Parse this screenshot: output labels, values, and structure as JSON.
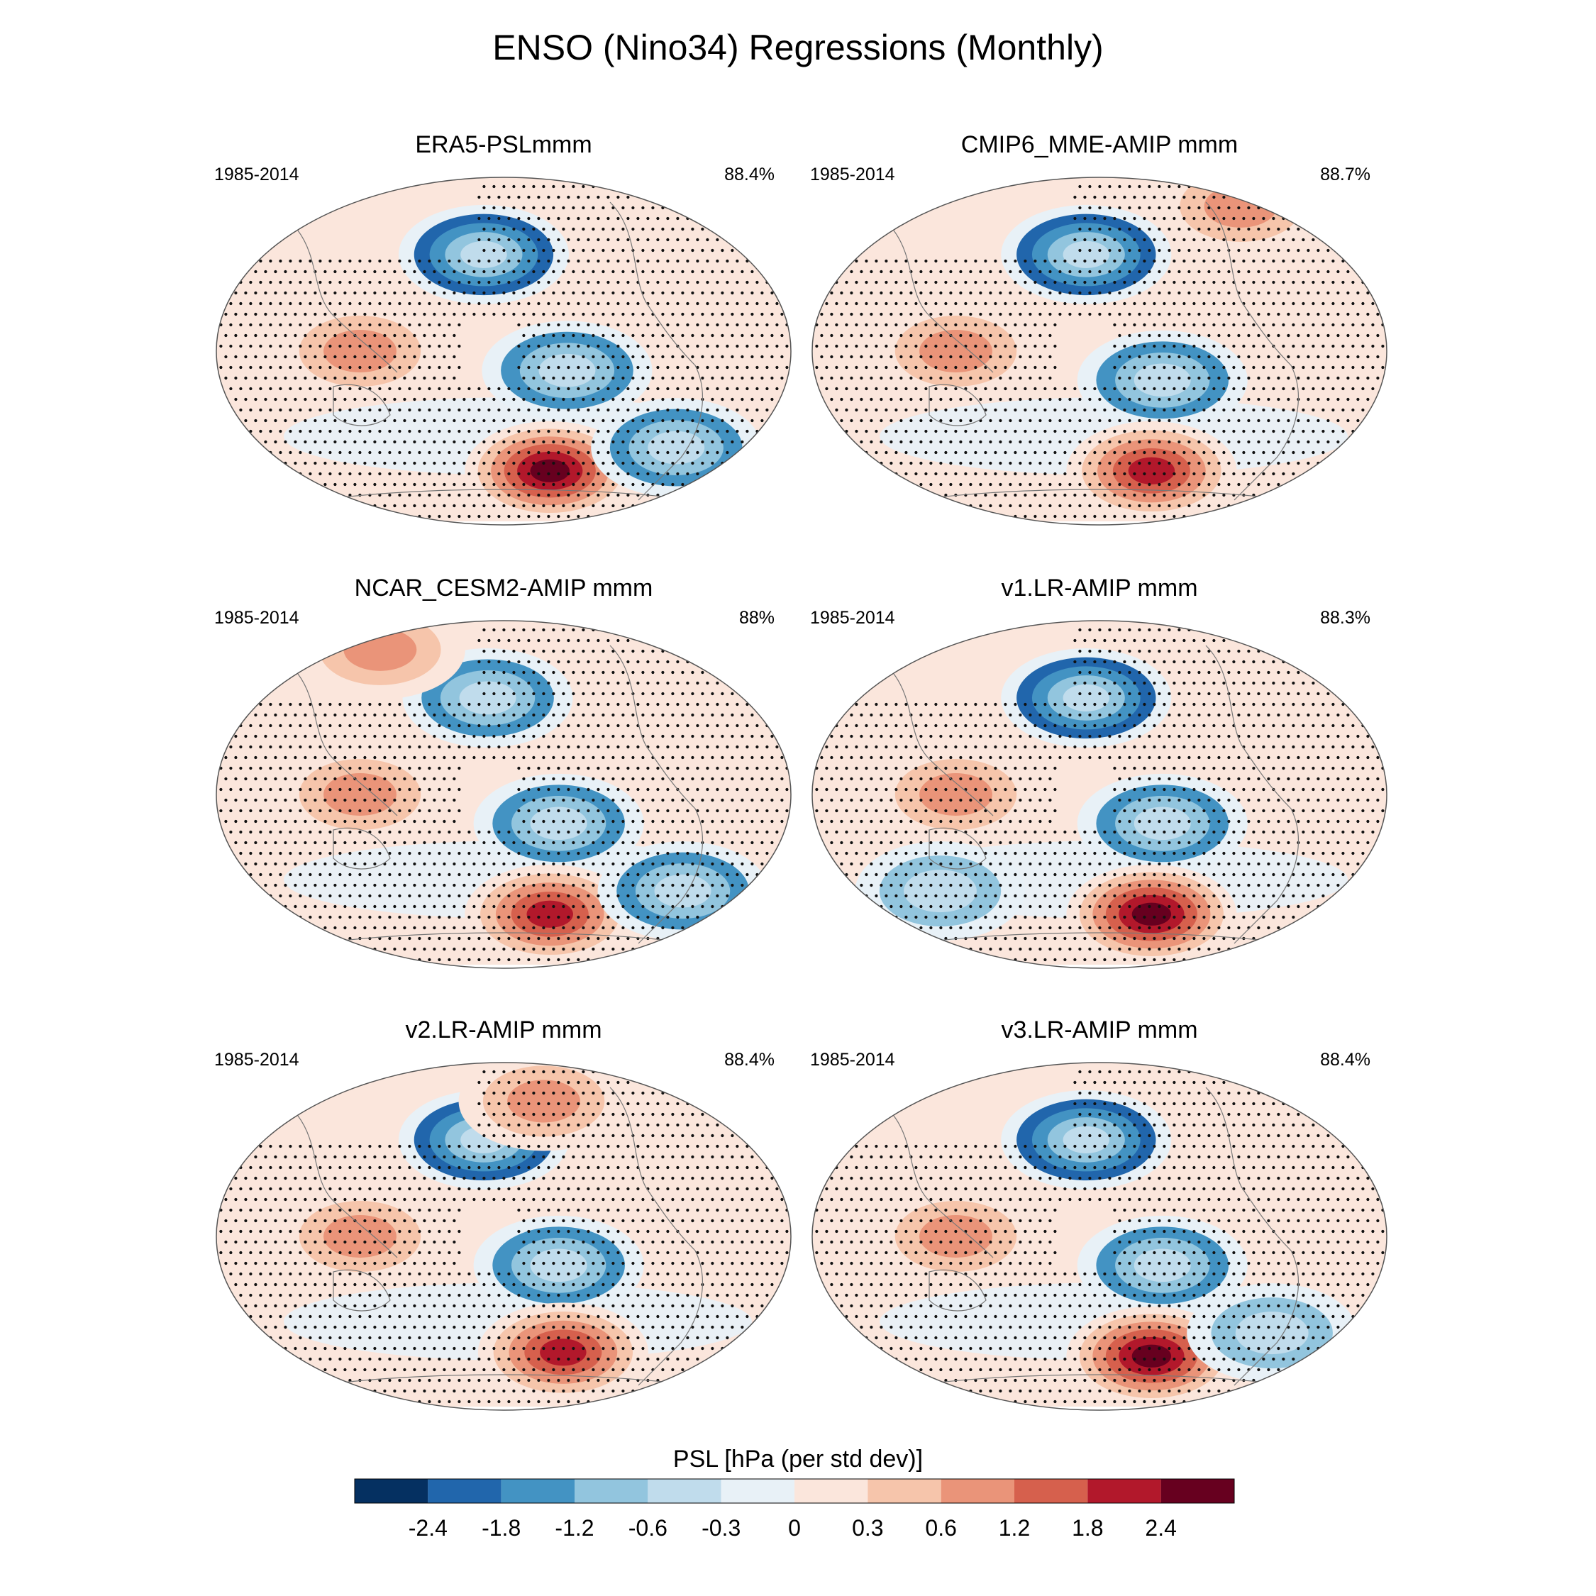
{
  "title": "ENSO (Nino34) Regressions (Monthly)",
  "chart_data": {
    "type": "heatmap",
    "description_variable": "PSL",
    "projection": "robinson",
    "panels": [
      {
        "title": "ERA5-PSLmmm",
        "period": "1985-2014",
        "pattern_correlation": "88.4%",
        "features": [
          {
            "name": "Aleutian low",
            "lon": -175,
            "lat": 50,
            "value": -1.8
          },
          {
            "name": "Maritime Continent high",
            "lon": 110,
            "lat": 0,
            "value": 1.0
          },
          {
            "name": "Tropical East Pacific low",
            "lon": -120,
            "lat": -10,
            "value": -1.2
          },
          {
            "name": "Amundsen Sea high",
            "lon": -120,
            "lat": -62,
            "value": 2.6
          },
          {
            "name": "South Atlantic low",
            "lon": -30,
            "lat": -50,
            "value": -1.2
          }
        ]
      },
      {
        "title": "CMIP6_MME-AMIP  mmm",
        "period": "1985-2014",
        "pattern_correlation": "88.7%",
        "features": [
          {
            "name": "Aleutian low",
            "lon": -170,
            "lat": 50,
            "value": -2.0
          },
          {
            "name": "Maritime Continent high",
            "lon": 110,
            "lat": 0,
            "value": 1.0
          },
          {
            "name": "Tropical East Pacific low",
            "lon": -120,
            "lat": -15,
            "value": -1.2
          },
          {
            "name": "Amundsen Sea high",
            "lon": -115,
            "lat": -62,
            "value": 1.8
          },
          {
            "name": "Arctic high",
            "lon": 0,
            "lat": 75,
            "value": 0.8
          }
        ]
      },
      {
        "title": "NCAR_CESM2-AMIP  mmm",
        "period": "1985-2014",
        "pattern_correlation": "88%",
        "features": [
          {
            "name": "Aleutian low",
            "lon": -172,
            "lat": 50,
            "value": -1.6
          },
          {
            "name": "Maritime Continent high",
            "lon": 110,
            "lat": 0,
            "value": 1.0
          },
          {
            "name": "Tropical East Pacific low",
            "lon": -125,
            "lat": -15,
            "value": -1.2
          },
          {
            "name": "Amundsen Sea high",
            "lon": -120,
            "lat": -62,
            "value": 2.0
          },
          {
            "name": "South Atlantic low",
            "lon": -25,
            "lat": -50,
            "value": -1.2
          },
          {
            "name": "Arctic high",
            "lon": 60,
            "lat": 75,
            "value": 0.8
          }
        ]
      },
      {
        "title": "v1.LR-AMIP  mmm",
        "period": "1985-2014",
        "pattern_correlation": "88.3%",
        "features": [
          {
            "name": "Aleutian low",
            "lon": -170,
            "lat": 50,
            "value": -1.8
          },
          {
            "name": "Maritime Continent high",
            "lon": 110,
            "lat": 0,
            "value": 0.8
          },
          {
            "name": "Tropical East Pacific low",
            "lon": -120,
            "lat": -15,
            "value": -1.2
          },
          {
            "name": "Amundsen Sea high",
            "lon": -115,
            "lat": -62,
            "value": 2.4
          },
          {
            "name": "South Indian Ocean low",
            "lon": 80,
            "lat": -50,
            "value": -0.6
          }
        ]
      },
      {
        "title": "v2.LR-AMIP  mmm",
        "period": "1985-2014",
        "pattern_correlation": "88.4%",
        "features": [
          {
            "name": "Aleutian low",
            "lon": -175,
            "lat": 50,
            "value": -1.8
          },
          {
            "name": "Maritime Continent high",
            "lon": 110,
            "lat": 0,
            "value": 0.8
          },
          {
            "name": "Tropical East Pacific low",
            "lon": -125,
            "lat": -15,
            "value": -1.2
          },
          {
            "name": "Amundsen Sea high",
            "lon": -110,
            "lat": -60,
            "value": 1.8
          },
          {
            "name": "North Pacific high",
            "lon": -120,
            "lat": 70,
            "value": 0.6
          }
        ]
      },
      {
        "title": "v3.LR-AMIP  mmm",
        "period": "1985-2014",
        "pattern_correlation": "88.4%",
        "features": [
          {
            "name": "Aleutian low",
            "lon": -170,
            "lat": 50,
            "value": -1.8
          },
          {
            "name": "Maritime Continent high",
            "lon": 110,
            "lat": 0,
            "value": 0.8
          },
          {
            "name": "Tropical East Pacific low",
            "lon": -120,
            "lat": -15,
            "value": -1.2
          },
          {
            "name": "Amundsen Sea high",
            "lon": -115,
            "lat": -62,
            "value": 2.4
          },
          {
            "name": "South Atlantic low",
            "lon": -30,
            "lat": -50,
            "value": -0.8
          }
        ]
      }
    ],
    "colorbar": {
      "label": "PSL [hPa (per std dev)]",
      "ticks": [
        "-2.4",
        "-1.8",
        "-1.2",
        "-0.6",
        "-0.3",
        "0",
        "0.3",
        "0.6",
        "1.2",
        "1.8",
        "2.4"
      ],
      "levels": [
        -2.4,
        -1.8,
        -1.2,
        -0.6,
        -0.3,
        0,
        0.3,
        0.6,
        1.2,
        1.8,
        2.4
      ],
      "colors": [
        "#053061",
        "#2166ac",
        "#4393c3",
        "#92c5de",
        "#c0dcec",
        "#e8f1f7",
        "#fbe6dc",
        "#f6c5ab",
        "#ea9479",
        "#d6604d",
        "#b2182b",
        "#67001f"
      ]
    }
  }
}
